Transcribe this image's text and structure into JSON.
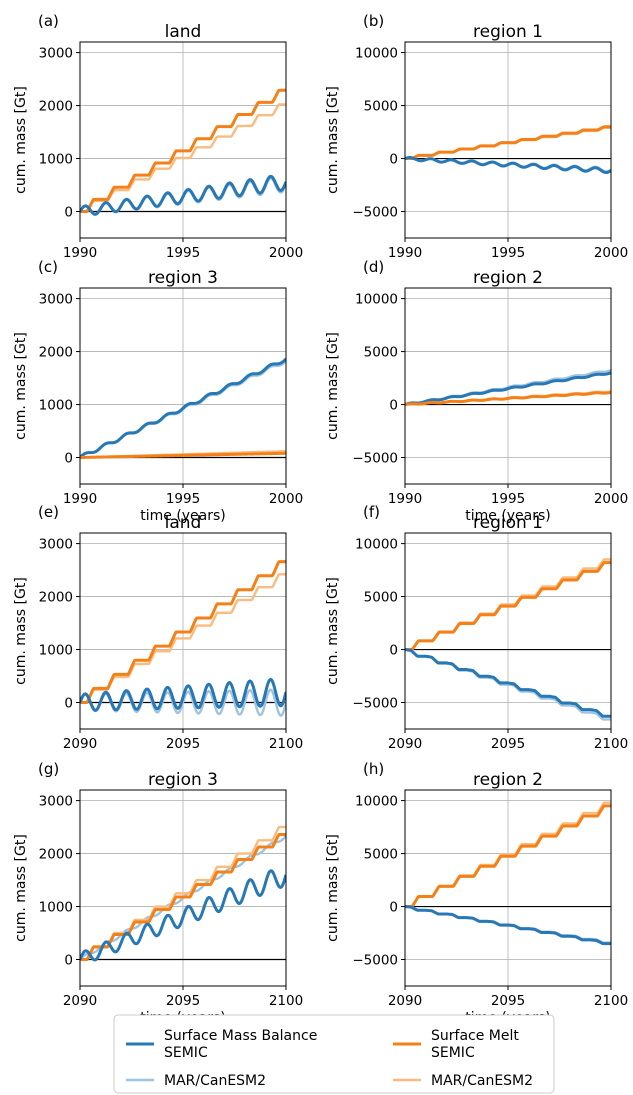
{
  "colors": {
    "smb_semic": "#2878b5",
    "smb_mar": "#9ec3e0",
    "melt_semic": "#f58018",
    "melt_mar": "#fcbb7e",
    "grid": "#b0b0b0",
    "zero_line": "#000000"
  },
  "legend": {
    "placement": "bottom-center",
    "entries": [
      {
        "key": "smb_semic",
        "label_line1": "Surface Mass Balance",
        "label_line2": "SEMIC"
      },
      {
        "key": "smb_mar",
        "label_line1": "MAR/CanESM2",
        "label_line2": ""
      },
      {
        "key": "melt_semic",
        "label_line1": "Surface Melt",
        "label_line2": "SEMIC"
      },
      {
        "key": "melt_mar",
        "label_line1": "MAR/CanESM2",
        "label_line2": ""
      }
    ]
  },
  "chart_data": [
    {
      "panel": "(a)",
      "title": "land",
      "type": "line",
      "xlabel": "",
      "ylabel": "cum. mass [Gt]",
      "xlim": [
        1990,
        2000
      ],
      "ylim": [
        -500,
        3200
      ],
      "xticks": [
        1990,
        1995,
        2000
      ],
      "yticks": [
        0,
        1000,
        2000,
        3000
      ],
      "xtick_labels": [
        "1990",
        "1995",
        "2000"
      ],
      "ytick_labels": [
        "0",
        "1000",
        "2000",
        "3000"
      ],
      "grid": true,
      "series": [
        {
          "key": "melt_mar",
          "kind": "step",
          "end": 2020,
          "wiggle": 0
        },
        {
          "key": "melt_semic",
          "kind": "step",
          "end": 2290,
          "wiggle": 0
        },
        {
          "key": "smb_mar",
          "kind": "oscillate",
          "end": 520,
          "wiggle": 150
        },
        {
          "key": "smb_semic",
          "kind": "oscillate",
          "end": 560,
          "wiggle": 150
        }
      ]
    },
    {
      "panel": "(b)",
      "title": "region 1",
      "type": "line",
      "xlabel": "",
      "ylabel": "cum. mass [Gt]",
      "xlim": [
        1990,
        2000
      ],
      "ylim": [
        -7500,
        11000
      ],
      "xticks": [
        1990,
        1995,
        2000
      ],
      "yticks": [
        -5000,
        0,
        5000,
        10000
      ],
      "xtick_labels": [
        "1990",
        "1995",
        "2000"
      ],
      "ytick_labels": [
        "−5000",
        "0",
        "5000",
        "10000"
      ],
      "grid": true,
      "series": [
        {
          "key": "melt_mar",
          "kind": "step",
          "end": 2900,
          "wiggle": 0
        },
        {
          "key": "melt_semic",
          "kind": "step",
          "end": 3000,
          "wiggle": 0
        },
        {
          "key": "smb_mar",
          "kind": "oscillate",
          "end": -1050,
          "wiggle": 200
        },
        {
          "key": "smb_semic",
          "kind": "oscillate",
          "end": -1150,
          "wiggle": 200
        }
      ]
    },
    {
      "panel": "(c)",
      "title": "region 3",
      "type": "line",
      "xlabel": "time (years)",
      "ylabel": "cum. mass [Gt]",
      "xlim": [
        1990,
        2000
      ],
      "ylim": [
        -500,
        3200
      ],
      "xticks": [
        1990,
        1995,
        2000
      ],
      "yticks": [
        0,
        1000,
        2000,
        3000
      ],
      "xtick_labels": [
        "1990",
        "1995",
        "2000"
      ],
      "ytick_labels": [
        "0",
        "1000",
        "2000",
        "3000"
      ],
      "grid": true,
      "series": [
        {
          "key": "smb_mar",
          "kind": "linear",
          "end": 1820,
          "wiggle": 30
        },
        {
          "key": "smb_semic",
          "kind": "linear",
          "end": 1860,
          "wiggle": 30
        },
        {
          "key": "melt_mar",
          "kind": "linear",
          "end": 120,
          "wiggle": 0
        },
        {
          "key": "melt_semic",
          "kind": "linear",
          "end": 80,
          "wiggle": 0
        }
      ]
    },
    {
      "panel": "(d)",
      "title": "region 2",
      "type": "line",
      "xlabel": "time (years)",
      "ylabel": "cum. mass [Gt]",
      "xlim": [
        1990,
        2000
      ],
      "ylim": [
        -7500,
        11000
      ],
      "xticks": [
        1990,
        1995,
        2000
      ],
      "yticks": [
        -5000,
        0,
        5000,
        10000
      ],
      "xtick_labels": [
        "1990",
        "1995",
        "2000"
      ],
      "ytick_labels": [
        "−5000",
        "0",
        "5000",
        "10000"
      ],
      "grid": true,
      "series": [
        {
          "key": "smb_mar",
          "kind": "linear",
          "end": 3250,
          "wiggle": 60
        },
        {
          "key": "smb_semic",
          "kind": "linear",
          "end": 3000,
          "wiggle": 60
        },
        {
          "key": "melt_mar",
          "kind": "linear",
          "end": 1250,
          "wiggle": 40
        },
        {
          "key": "melt_semic",
          "kind": "linear",
          "end": 1150,
          "wiggle": 40
        }
      ]
    },
    {
      "panel": "(e)",
      "title": "land",
      "type": "line",
      "xlabel": "",
      "ylabel": "cum. mass [Gt]",
      "xlim": [
        2090,
        2100
      ],
      "ylim": [
        -500,
        3200
      ],
      "xticks": [
        2090,
        2095,
        2100
      ],
      "yticks": [
        0,
        1000,
        2000,
        3000
      ],
      "xtick_labels": [
        "2090",
        "2095",
        "2100"
      ],
      "ytick_labels": [
        "0",
        "1000",
        "2000",
        "3000"
      ],
      "grid": true,
      "series": [
        {
          "key": "melt_mar",
          "kind": "step",
          "end": 2420,
          "wiggle": 0
        },
        {
          "key": "melt_semic",
          "kind": "step",
          "end": 2660,
          "wiggle": 0
        },
        {
          "key": "smb_mar",
          "kind": "oscillate",
          "end": 0,
          "wiggle": 250
        },
        {
          "key": "smb_semic",
          "kind": "oscillate",
          "end": 200,
          "wiggle": 260
        }
      ]
    },
    {
      "panel": "(f)",
      "title": "region 1",
      "type": "line",
      "xlabel": "",
      "ylabel": "cum. mass [Gt]",
      "xlim": [
        2090,
        2100
      ],
      "ylim": [
        -7500,
        11000
      ],
      "xticks": [
        2090,
        2095,
        2100
      ],
      "yticks": [
        -5000,
        0,
        5000,
        10000
      ],
      "xtick_labels": [
        "2090",
        "2095",
        "2100"
      ],
      "ytick_labels": [
        "−5000",
        "0",
        "5000",
        "10000"
      ],
      "grid": true,
      "series": [
        {
          "key": "melt_mar",
          "kind": "step",
          "end": 8500,
          "wiggle": 0
        },
        {
          "key": "melt_semic",
          "kind": "step",
          "end": 8200,
          "wiggle": 0
        },
        {
          "key": "smb_mar",
          "kind": "stepdown",
          "end": -6600,
          "wiggle": 0
        },
        {
          "key": "smb_semic",
          "kind": "stepdown",
          "end": -6300,
          "wiggle": 0
        }
      ]
    },
    {
      "panel": "(g)",
      "title": "region 3",
      "type": "line",
      "xlabel": "time (years)",
      "ylabel": "cum. mass [Gt]",
      "xlim": [
        2090,
        2100
      ],
      "ylim": [
        -500,
        3200
      ],
      "xticks": [
        2090,
        2095,
        2100
      ],
      "yticks": [
        0,
        1000,
        2000,
        3000
      ],
      "xtick_labels": [
        "2090",
        "2095",
        "2100"
      ],
      "ytick_labels": [
        "0",
        "1000",
        "2000",
        "3000"
      ],
      "grid": true,
      "series": [
        {
          "key": "smb_mar",
          "kind": "linear",
          "end": 2330,
          "wiggle": 30
        },
        {
          "key": "melt_mar",
          "kind": "step",
          "end": 2500,
          "wiggle": 0
        },
        {
          "key": "melt_semic",
          "kind": "step",
          "end": 2360,
          "wiggle": 0
        },
        {
          "key": "smb_semic",
          "kind": "oscillate",
          "end": 1600,
          "wiggle": 200
        }
      ]
    },
    {
      "panel": "(h)",
      "title": "region 2",
      "type": "line",
      "xlabel": "time (years)",
      "ylabel": "cum. mass [Gt]",
      "xlim": [
        2090,
        2100
      ],
      "ylim": [
        -7500,
        11000
      ],
      "xticks": [
        2090,
        2095,
        2100
      ],
      "yticks": [
        -5000,
        0,
        5000,
        10000
      ],
      "xtick_labels": [
        "2090",
        "2095",
        "2100"
      ],
      "ytick_labels": [
        "−5000",
        "0",
        "5000",
        "10000"
      ],
      "grid": true,
      "series": [
        {
          "key": "melt_mar",
          "kind": "step",
          "end": 9800,
          "wiggle": 0
        },
        {
          "key": "melt_semic",
          "kind": "step",
          "end": 9500,
          "wiggle": 0
        },
        {
          "key": "smb_mar",
          "kind": "stepdown",
          "end": -3400,
          "wiggle": 0
        },
        {
          "key": "smb_semic",
          "kind": "stepdown",
          "end": -3500,
          "wiggle": 0
        }
      ]
    }
  ]
}
